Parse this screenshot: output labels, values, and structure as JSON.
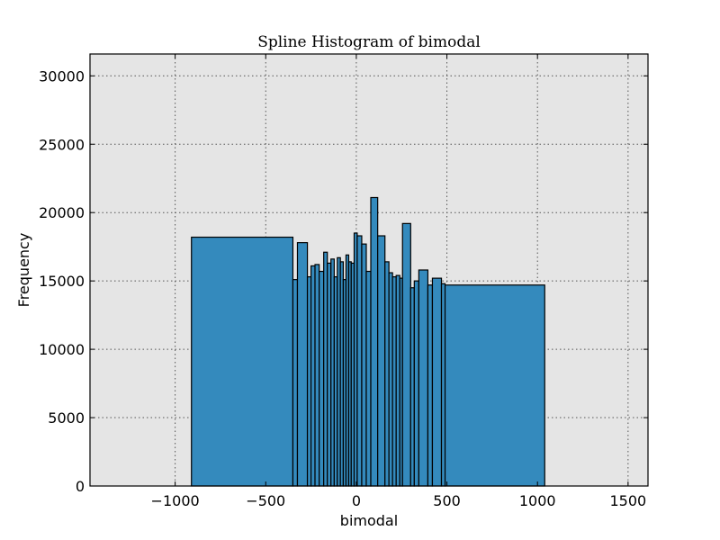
{
  "chart_data": {
    "type": "bar",
    "title": "Spline Histogram of bimodal",
    "xlabel": "bimodal",
    "ylabel": "Frequency",
    "xlim": [
      -1470,
      1610
    ],
    "ylim": [
      0,
      31600
    ],
    "xticks": [
      -1000,
      -500,
      0,
      500,
      1000,
      1500
    ],
    "xtick_labels": [
      "−1000",
      "−500",
      "0",
      "500",
      "1000",
      "1500"
    ],
    "yticks": [
      0,
      5000,
      10000,
      15000,
      20000,
      25000,
      30000
    ],
    "ytick_labels": [
      "0",
      "5000",
      "10000",
      "15000",
      "20000",
      "25000",
      "30000"
    ],
    "grid": true,
    "bars": [
      {
        "x0": -910,
        "x1": -350,
        "value": 18200
      },
      {
        "x0": -350,
        "x1": -325,
        "value": 15100
      },
      {
        "x0": -325,
        "x1": -270,
        "value": 17800
      },
      {
        "x0": -270,
        "x1": -250,
        "value": 15300
      },
      {
        "x0": -250,
        "x1": -228,
        "value": 16100
      },
      {
        "x0": -228,
        "x1": -205,
        "value": 16200
      },
      {
        "x0": -205,
        "x1": -180,
        "value": 15700
      },
      {
        "x0": -180,
        "x1": -160,
        "value": 17100
      },
      {
        "x0": -160,
        "x1": -140,
        "value": 16300
      },
      {
        "x0": -140,
        "x1": -122,
        "value": 16600
      },
      {
        "x0": -122,
        "x1": -105,
        "value": 15300
      },
      {
        "x0": -105,
        "x1": -88,
        "value": 16700
      },
      {
        "x0": -88,
        "x1": -72,
        "value": 16400
      },
      {
        "x0": -72,
        "x1": -57,
        "value": 15100
      },
      {
        "x0": -57,
        "x1": -42,
        "value": 16900
      },
      {
        "x0": -42,
        "x1": -28,
        "value": 16400
      },
      {
        "x0": -28,
        "x1": -12,
        "value": 16300
      },
      {
        "x0": -12,
        "x1": 5,
        "value": 18500
      },
      {
        "x0": 5,
        "x1": 30,
        "value": 18300
      },
      {
        "x0": 30,
        "x1": 55,
        "value": 17700
      },
      {
        "x0": 55,
        "x1": 80,
        "value": 15700
      },
      {
        "x0": 80,
        "x1": 118,
        "value": 21100
      },
      {
        "x0": 118,
        "x1": 158,
        "value": 18300
      },
      {
        "x0": 158,
        "x1": 180,
        "value": 16400
      },
      {
        "x0": 180,
        "x1": 200,
        "value": 15600
      },
      {
        "x0": 200,
        "x1": 220,
        "value": 15300
      },
      {
        "x0": 220,
        "x1": 240,
        "value": 15400
      },
      {
        "x0": 240,
        "x1": 255,
        "value": 15200
      },
      {
        "x0": 255,
        "x1": 300,
        "value": 19200
      },
      {
        "x0": 300,
        "x1": 320,
        "value": 14500
      },
      {
        "x0": 320,
        "x1": 345,
        "value": 15000
      },
      {
        "x0": 345,
        "x1": 395,
        "value": 15800
      },
      {
        "x0": 395,
        "x1": 420,
        "value": 14700
      },
      {
        "x0": 420,
        "x1": 470,
        "value": 15200
      },
      {
        "x0": 470,
        "x1": 490,
        "value": 14800
      },
      {
        "x0": 490,
        "x1": 1040,
        "value": 14700
      }
    ],
    "colors": {
      "bar_fill": "#348ABD",
      "bar_edge": "#000000",
      "plot_background": "#E5E5E5",
      "page_background": "#FFFFFF"
    }
  }
}
